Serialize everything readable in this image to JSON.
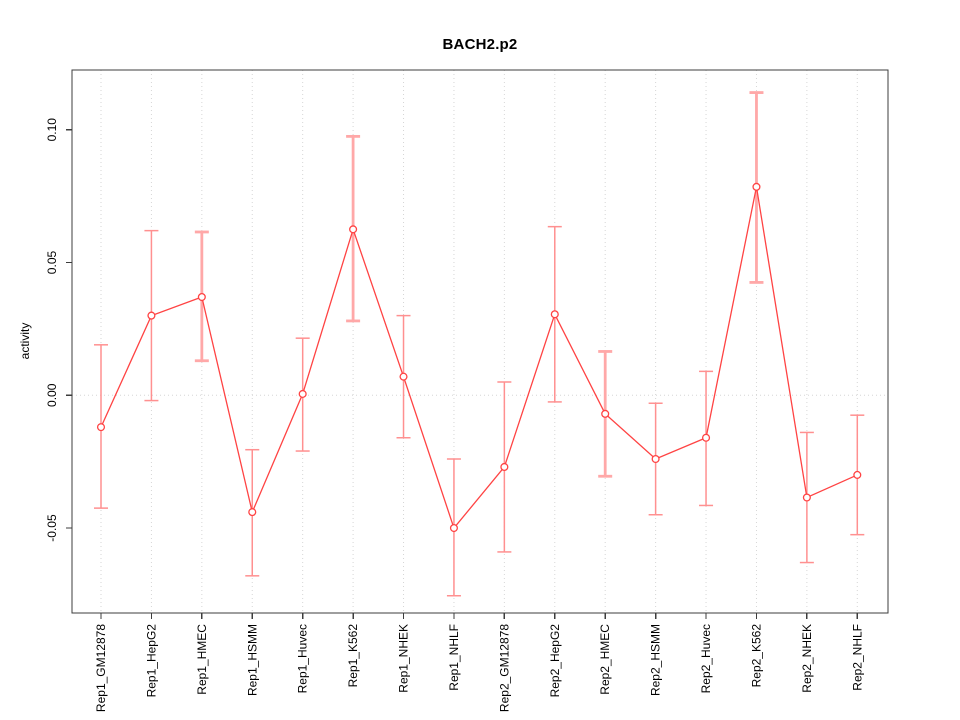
{
  "page": {
    "title": "BACH2.p2"
  },
  "chart_data": {
    "type": "line",
    "title": "BACH2.p2",
    "xlabel": "",
    "ylabel": "activity",
    "categories": [
      "Rep1_GM12878",
      "Rep1_HepG2",
      "Rep1_HMEC",
      "Rep1_HSMM",
      "Rep1_Huvec",
      "Rep1_K562",
      "Rep1_NHEK",
      "Rep1_NHLF",
      "Rep2_GM12878",
      "Rep2_HepG2",
      "Rep2_HMEC",
      "Rep2_HSMM",
      "Rep2_Huvec",
      "Rep2_K562",
      "Rep2_NHEK",
      "Rep2_NHLF"
    ],
    "series": [
      {
        "name": "activity",
        "marker": "open-circle",
        "values": [
          -0.012,
          0.03,
          0.037,
          -0.044,
          0.0005,
          0.0625,
          0.007,
          -0.05,
          -0.027,
          0.0305,
          -0.007,
          -0.024,
          -0.016,
          0.0785,
          -0.0385,
          -0.03
        ],
        "err_hi": [
          0.019,
          0.062,
          0.0615,
          -0.0205,
          0.0215,
          0.0975,
          0.03,
          -0.024,
          0.005,
          0.0635,
          0.0165,
          -0.003,
          0.009,
          0.114,
          -0.014,
          -0.0075
        ],
        "err_lo": [
          -0.0425,
          -0.002,
          0.013,
          -0.068,
          -0.021,
          0.028,
          -0.016,
          -0.0755,
          -0.059,
          -0.0025,
          -0.0305,
          -0.045,
          -0.0415,
          0.0425,
          -0.063,
          -0.0525
        ],
        "thick_error_bar": [
          false,
          false,
          true,
          false,
          false,
          true,
          false,
          false,
          false,
          false,
          true,
          false,
          false,
          true,
          false,
          false
        ]
      }
    ],
    "ylim": [
      -0.082,
      0.1225
    ],
    "yticks": {
      "values": [
        -0.05,
        0.0,
        0.05,
        0.1
      ],
      "labels": [
        "-0.05",
        "0.00",
        "0.05",
        "0.10"
      ]
    },
    "grid": "dotted vertical line at each category; dotted horizontal line at y=0",
    "legend": "none",
    "colors": {
      "line": "#ff4343",
      "marker_stroke": "#ff4343",
      "marker_fill": "#ffffff",
      "error_thin": "#ff9090",
      "error_thick": "#ffa8a8",
      "grid": "#d6d6d6",
      "axis": "#3c3c3c",
      "text": "#000000"
    }
  }
}
